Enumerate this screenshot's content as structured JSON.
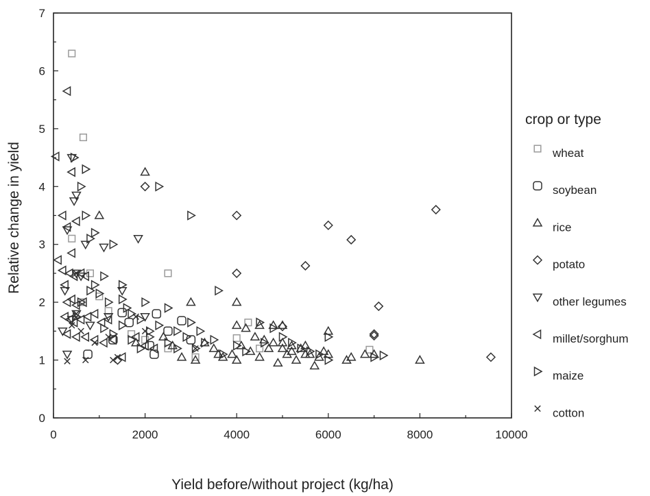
{
  "chart_data": {
    "type": "scatter",
    "title": "",
    "xlabel": "Yield before/without project (kg/ha)",
    "ylabel": "Relative change in yield",
    "xlim": [
      0,
      10000
    ],
    "ylim": [
      0,
      7
    ],
    "x_ticks": [
      "0",
      "2000",
      "4000",
      "6000",
      "8000",
      "10000"
    ],
    "y_ticks": [
      "0",
      "1",
      "2",
      "3",
      "4",
      "5",
      "6",
      "7"
    ],
    "grid": false,
    "legend_position": "right",
    "legend_title": "crop or type",
    "series": [
      {
        "name": "wheat",
        "marker": "square",
        "color": "#9a9a9a",
        "points": [
          [
            400,
            6.3
          ],
          [
            650,
            4.85
          ],
          [
            400,
            3.1
          ],
          [
            800,
            2.5
          ],
          [
            1000,
            2.1
          ],
          [
            1200,
            1.85
          ],
          [
            1700,
            1.45
          ],
          [
            2000,
            1.35
          ],
          [
            2500,
            2.5
          ],
          [
            2500,
            1.2
          ],
          [
            3100,
            1.05
          ],
          [
            4000,
            1.38
          ],
          [
            4250,
            1.65
          ],
          [
            4500,
            1.2
          ],
          [
            6900,
            1.18
          ],
          [
            600,
            2.0
          ]
        ]
      },
      {
        "name": "soybean",
        "marker": "circle",
        "color": "#333333",
        "points": [
          [
            750,
            1.1
          ],
          [
            1500,
            1.82
          ],
          [
            1650,
            1.65
          ],
          [
            2100,
            1.25
          ],
          [
            2200,
            1.1
          ],
          [
            2250,
            1.8
          ],
          [
            2800,
            1.68
          ],
          [
            2500,
            1.5
          ],
          [
            3000,
            1.35
          ],
          [
            1300,
            1.35
          ]
        ]
      },
      {
        "name": "rice",
        "marker": "triangle-up",
        "color": "#333333",
        "points": [
          [
            1000,
            3.5
          ],
          [
            2000,
            4.25
          ],
          [
            3000,
            2.0
          ],
          [
            4000,
            2.0
          ],
          [
            4000,
            1.6
          ],
          [
            4200,
            1.55
          ],
          [
            4500,
            1.6
          ],
          [
            4800,
            1.6
          ],
          [
            5000,
            1.6
          ],
          [
            5000,
            1.3
          ],
          [
            5500,
            1.1
          ],
          [
            6000,
            1.5
          ],
          [
            6000,
            1.1
          ],
          [
            6400,
            1.0
          ],
          [
            6500,
            1.05
          ],
          [
            7000,
            1.1
          ],
          [
            8000,
            1.0
          ],
          [
            2800,
            1.05
          ],
          [
            3100,
            1.0
          ],
          [
            3500,
            1.2
          ],
          [
            3600,
            1.1
          ],
          [
            3900,
            1.1
          ],
          [
            4000,
            1.0
          ],
          [
            4300,
            1.15
          ],
          [
            4500,
            1.05
          ],
          [
            4700,
            1.2
          ],
          [
            4900,
            0.95
          ],
          [
            5100,
            1.1
          ],
          [
            5200,
            1.15
          ],
          [
            5300,
            1.0
          ],
          [
            5400,
            1.2
          ],
          [
            5600,
            1.1
          ],
          [
            5700,
            0.9
          ],
          [
            5800,
            1.05
          ],
          [
            5900,
            1.15
          ],
          [
            1800,
            1.3
          ],
          [
            2400,
            1.4
          ],
          [
            2600,
            1.25
          ],
          [
            3300,
            1.3
          ],
          [
            3700,
            1.05
          ],
          [
            4100,
            1.25
          ],
          [
            4400,
            1.4
          ],
          [
            4600,
            1.35
          ],
          [
            4800,
            1.3
          ],
          [
            5000,
            1.2
          ],
          [
            5200,
            1.25
          ],
          [
            5500,
            1.25
          ],
          [
            6800,
            1.1
          ]
        ]
      },
      {
        "name": "potato",
        "marker": "diamond",
        "color": "#333333",
        "points": [
          [
            8350,
            3.6
          ],
          [
            6000,
            3.33
          ],
          [
            6500,
            3.08
          ],
          [
            5500,
            2.63
          ],
          [
            7000,
            1.45
          ],
          [
            7000,
            1.42
          ],
          [
            7100,
            1.93
          ],
          [
            9550,
            1.05
          ],
          [
            4000,
            3.5
          ],
          [
            4000,
            2.5
          ],
          [
            5000,
            1.58
          ],
          [
            2000,
            4.0
          ],
          [
            1400,
            1.0
          ]
        ]
      },
      {
        "name": "other legumes",
        "marker": "triangle-down",
        "color": "#333333",
        "points": [
          [
            400,
            4.5
          ],
          [
            450,
            3.75
          ],
          [
            500,
            3.85
          ],
          [
            300,
            3.25
          ],
          [
            1850,
            3.1
          ],
          [
            1100,
            2.95
          ],
          [
            700,
            3.0
          ],
          [
            500,
            2.5
          ],
          [
            250,
            2.2
          ],
          [
            1500,
            2.2
          ],
          [
            500,
            1.8
          ],
          [
            1200,
            1.75
          ],
          [
            2000,
            1.75
          ],
          [
            200,
            1.5
          ],
          [
            300,
            1.1
          ],
          [
            800,
            1.6
          ],
          [
            400,
            1.7
          ],
          [
            600,
            2.45
          ]
        ]
      },
      {
        "name": "millet/sorghum",
        "marker": "triangle-left",
        "color": "#333333",
        "points": [
          [
            300,
            5.65
          ],
          [
            50,
            4.52
          ],
          [
            400,
            4.25
          ],
          [
            200,
            3.5
          ],
          [
            100,
            2.73
          ],
          [
            500,
            3.4
          ],
          [
            300,
            3.3
          ],
          [
            400,
            2.85
          ],
          [
            200,
            2.55
          ],
          [
            350,
            2.5
          ],
          [
            450,
            2.45
          ],
          [
            600,
            2.5
          ],
          [
            700,
            2.45
          ],
          [
            250,
            2.3
          ],
          [
            300,
            2.0
          ],
          [
            400,
            2.05
          ],
          [
            500,
            1.95
          ],
          [
            650,
            2.0
          ],
          [
            250,
            1.75
          ],
          [
            350,
            1.7
          ],
          [
            450,
            1.65
          ],
          [
            600,
            1.7
          ],
          [
            750,
            1.75
          ],
          [
            900,
            1.8
          ],
          [
            1050,
            1.65
          ],
          [
            1200,
            1.7
          ],
          [
            300,
            1.45
          ],
          [
            500,
            1.4
          ],
          [
            700,
            1.4
          ],
          [
            900,
            1.35
          ],
          [
            1100,
            1.3
          ],
          [
            1300,
            1.35
          ],
          [
            1500,
            1.05
          ],
          [
            2000,
            1.25
          ],
          [
            2200,
            1.2
          ],
          [
            1800,
            1.4
          ]
        ]
      },
      {
        "name": "maize",
        "marker": "triangle-right",
        "color": "#333333",
        "points": [
          [
            450,
            4.5
          ],
          [
            600,
            4.0
          ],
          [
            700,
            4.3
          ],
          [
            2300,
            4.0
          ],
          [
            3000,
            3.5
          ],
          [
            700,
            3.5
          ],
          [
            900,
            3.2
          ],
          [
            1300,
            3.0
          ],
          [
            800,
            3.1
          ],
          [
            1100,
            2.45
          ],
          [
            3600,
            2.2
          ],
          [
            2000,
            2.0
          ],
          [
            2500,
            1.9
          ],
          [
            1500,
            2.3
          ],
          [
            900,
            2.3
          ],
          [
            1000,
            2.15
          ],
          [
            1200,
            2.0
          ],
          [
            1500,
            2.05
          ],
          [
            3000,
            1.65
          ],
          [
            3200,
            1.5
          ],
          [
            3500,
            1.35
          ],
          [
            4500,
            1.65
          ],
          [
            4800,
            1.55
          ],
          [
            5000,
            1.4
          ],
          [
            6000,
            1.4
          ],
          [
            7200,
            1.08
          ],
          [
            1600,
            1.9
          ],
          [
            1700,
            1.8
          ],
          [
            1900,
            1.7
          ],
          [
            2100,
            1.5
          ],
          [
            2300,
            1.6
          ],
          [
            2700,
            1.5
          ],
          [
            2900,
            1.4
          ],
          [
            3100,
            1.2
          ],
          [
            3300,
            1.3
          ],
          [
            3700,
            1.1
          ],
          [
            4000,
            1.25
          ],
          [
            4200,
            1.15
          ],
          [
            4600,
            1.3
          ],
          [
            5200,
            1.3
          ],
          [
            5400,
            1.2
          ],
          [
            5600,
            1.15
          ],
          [
            5800,
            1.1
          ],
          [
            6000,
            1.0
          ],
          [
            7000,
            1.05
          ],
          [
            800,
            2.2
          ],
          [
            600,
            2.0
          ],
          [
            500,
            1.75
          ],
          [
            1100,
            1.55
          ],
          [
            1300,
            1.45
          ],
          [
            1500,
            1.6
          ],
          [
            1700,
            1.35
          ],
          [
            1900,
            1.2
          ],
          [
            2100,
            1.4
          ],
          [
            2500,
            1.3
          ],
          [
            2700,
            1.2
          ]
        ]
      },
      {
        "name": "cotton",
        "marker": "x",
        "color": "#333333",
        "points": [
          [
            300,
            0.98
          ],
          [
            700,
            1.0
          ],
          [
            1300,
            1.0
          ],
          [
            1400,
            1.05
          ],
          [
            400,
            1.6
          ],
          [
            600,
            1.5
          ],
          [
            900,
            1.3
          ],
          [
            1200,
            1.4
          ],
          [
            500,
            1.8
          ],
          [
            2000,
            1.5
          ],
          [
            3100,
            1.2
          ],
          [
            1800,
            1.75
          ],
          [
            500,
            2.5
          ]
        ]
      }
    ]
  }
}
